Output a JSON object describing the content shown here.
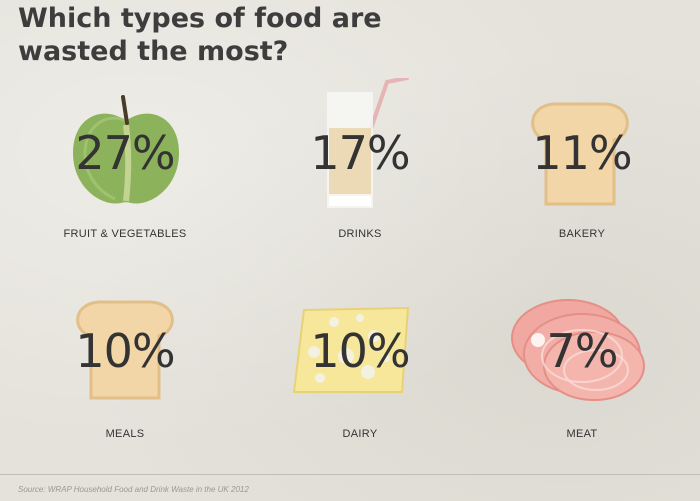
{
  "title": "Which types of food are wasted the most?",
  "chart_data": {
    "type": "table",
    "title": "Which types of food are wasted the most?",
    "categories": [
      "FRUIT & VEGETABLES",
      "DRINKS",
      "BAKERY",
      "MEALS",
      "DAIRY",
      "MEAT"
    ],
    "values": [
      27,
      17,
      11,
      10,
      10,
      7
    ],
    "value_labels": [
      "27%",
      "17%",
      "11%",
      "10%",
      "10%",
      "7%"
    ],
    "icons": [
      "apple-icon",
      "glass-of-milk-icon",
      "bread-slice-icon",
      "bread-slice-icon",
      "cheese-icon",
      "ham-slices-icon"
    ],
    "unit": "%"
  },
  "colors": {
    "background": "#e4e2da",
    "text": "#333333",
    "apple": "#8cb35c",
    "bread": "#f3d6a7",
    "cheese": "#f7e79a",
    "meat": "#f0a8a0"
  },
  "source": "Source: WRAP Household Food and Drink Waste in the UK 2012"
}
